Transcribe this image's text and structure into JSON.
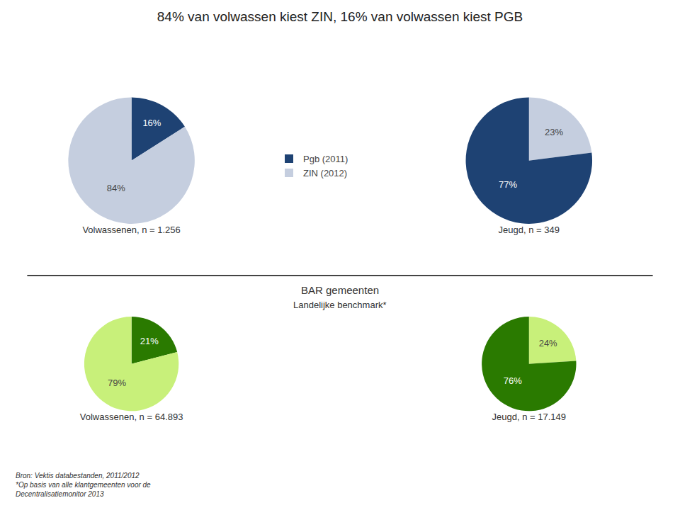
{
  "title": "84% van volwassen kiest ZIN, 16% van volwassen kiest PGB",
  "annotations": [
    "BAR gemeenten",
    "Landelijke benchmark*"
  ],
  "footnote": [
    "Bron: Vektis databestanden, 2011/2012",
    "*Op basis van alle klantgemeenten voor de",
    "Decentralisatiemonitor 2013"
  ],
  "chart_data": [
    {
      "type": "pie",
      "title": "Volwassenen, n = 1.256",
      "categories": [
        "Pgb (2011)",
        "ZIN (2012)"
      ],
      "values": [
        16,
        84
      ],
      "value_labels": [
        "16%",
        "84%"
      ],
      "colors": [
        "#1e4273",
        "#c5cedf"
      ],
      "data_labels": true,
      "legend": "right"
    },
    {
      "type": "pie",
      "title": "Jeugd, n = 349",
      "categories": [
        "ZIN (2012)",
        "Pgb (2011)"
      ],
      "values": [
        23,
        77
      ],
      "value_labels": [
        "23%",
        "77%"
      ],
      "colors": [
        "#c5cedf",
        "#1e4273"
      ],
      "data_labels": true
    },
    {
      "type": "pie",
      "title": "Volwassenen, n = 64.893",
      "categories": [
        "Pgb (2011)",
        "ZIN (2012)"
      ],
      "values": [
        21,
        79
      ],
      "value_labels": [
        "21%",
        "79%"
      ],
      "colors": [
        "#2a7a00",
        "#c8f07a"
      ],
      "data_labels": true,
      "legend": "right"
    },
    {
      "type": "pie",
      "title": "Jeugd, n = 17.149",
      "categories": [
        "ZIN (2012)",
        "Pgb (2011)"
      ],
      "values": [
        24,
        76
      ],
      "value_labels": [
        "24%",
        "76%"
      ],
      "colors": [
        "#c8f07a",
        "#2a7a00"
      ],
      "data_labels": true
    }
  ]
}
